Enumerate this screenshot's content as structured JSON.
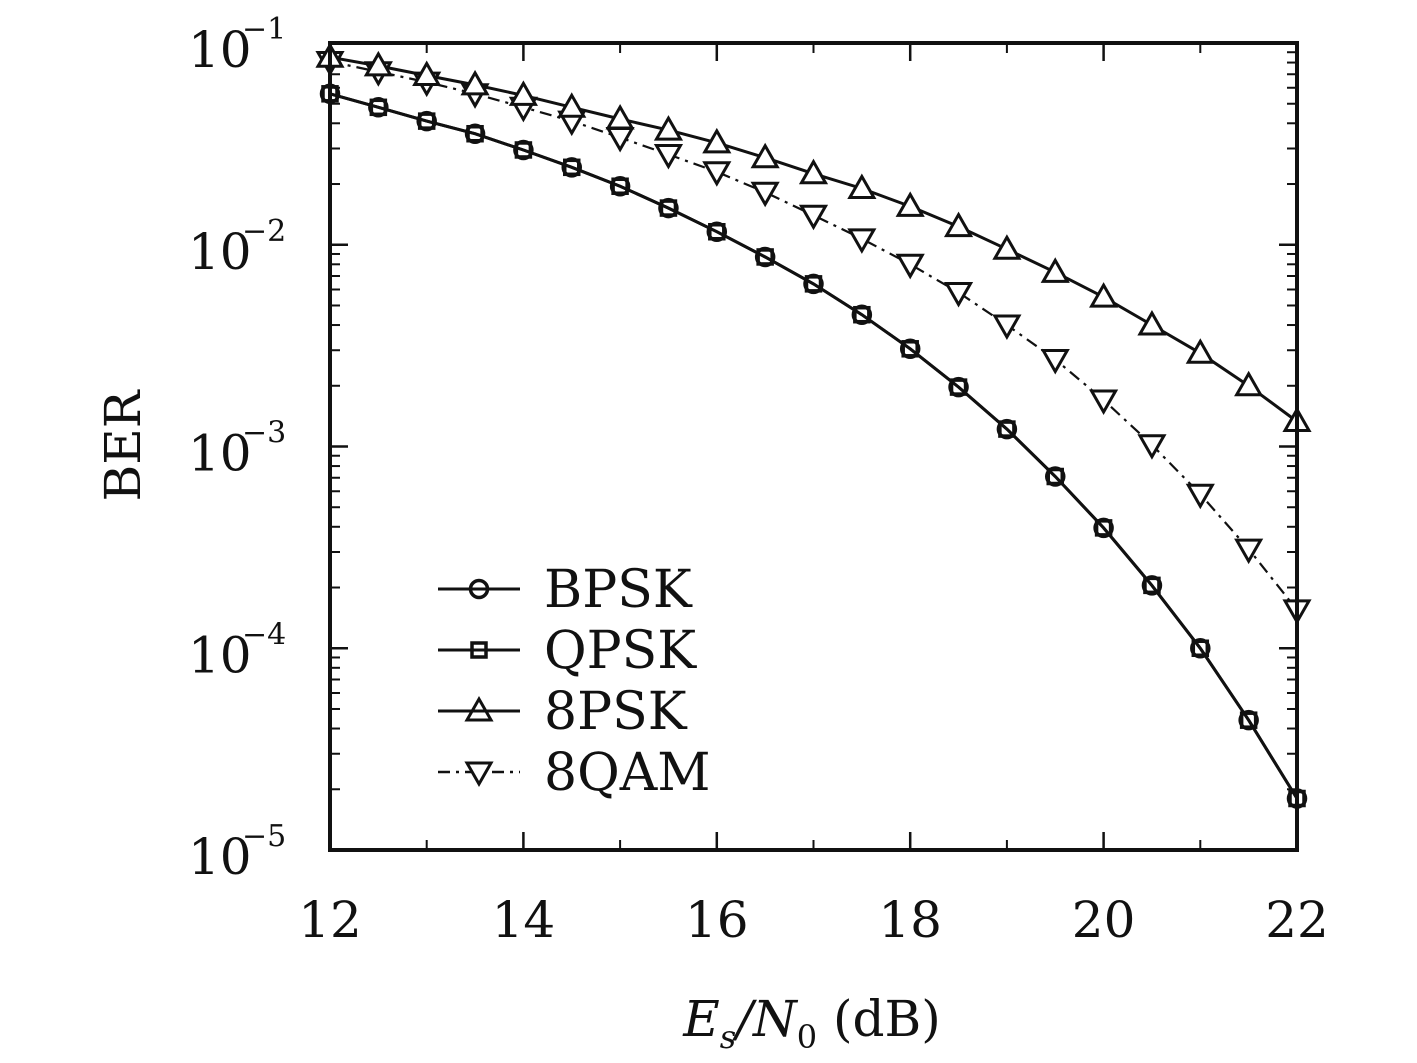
{
  "chart_data": {
    "type": "line",
    "xlabel": {
      "main": "E",
      "sub1": "s",
      "slash": "/N",
      "sub2": "0",
      "unit": " (dB)"
    },
    "ylabel": "BER",
    "xlim": [
      12,
      22
    ],
    "ylim": [
      1e-05,
      0.1
    ],
    "yscale": "log",
    "grid": false,
    "legend_position": "bottom-left",
    "x_ticks": [
      12,
      14,
      16,
      18,
      20,
      22
    ],
    "y_ticks": [
      {
        "value": 0.1,
        "base": "10",
        "exp": "−1"
      },
      {
        "value": 0.01,
        "base": "10",
        "exp": "−2"
      },
      {
        "value": 0.001,
        "base": "10",
        "exp": "−3"
      },
      {
        "value": 0.0001,
        "base": "10",
        "exp": "−4"
      },
      {
        "value": 1e-05,
        "base": "10",
        "exp": "−5"
      }
    ],
    "x": [
      12,
      12.5,
      13,
      13.5,
      14,
      14.5,
      15,
      15.5,
      16,
      16.5,
      17,
      17.5,
      18,
      18.5,
      19,
      19.5,
      20,
      20.5,
      21,
      21.5,
      22
    ],
    "series": [
      {
        "name": "BPSK",
        "marker": "circle",
        "dash": "solid",
        "values": [
          0.056,
          0.048,
          0.041,
          0.0355,
          0.0295,
          0.0242,
          0.0195,
          0.0152,
          0.0116,
          0.0087,
          0.0064,
          0.0045,
          0.00305,
          0.00197,
          0.00122,
          0.00071,
          0.000395,
          0.000205,
          0.0001,
          4.4e-05,
          1.8e-05
        ]
      },
      {
        "name": "QPSK",
        "marker": "square",
        "dash": "solid",
        "values": [
          0.056,
          0.048,
          0.041,
          0.0355,
          0.0295,
          0.0242,
          0.0195,
          0.0152,
          0.0116,
          0.0087,
          0.0064,
          0.0045,
          0.00305,
          0.00197,
          0.00122,
          0.00071,
          0.000395,
          0.000205,
          0.0001,
          4.4e-05,
          1.8e-05
        ]
      },
      {
        "name": "8PSK",
        "marker": "triangle-up",
        "dash": "solid",
        "values": [
          0.085,
          0.077,
          0.069,
          0.062,
          0.055,
          0.048,
          0.042,
          0.037,
          0.032,
          0.027,
          0.0225,
          0.019,
          0.0155,
          0.0123,
          0.0095,
          0.0073,
          0.0055,
          0.004,
          0.0029,
          0.002,
          0.00133
        ]
      },
      {
        "name": "8QAM",
        "marker": "triangle-down",
        "dash": "dashdot",
        "values": [
          0.081,
          0.072,
          0.064,
          0.056,
          0.048,
          0.041,
          0.034,
          0.028,
          0.023,
          0.0182,
          0.014,
          0.0107,
          0.008,
          0.0058,
          0.004,
          0.0027,
          0.0017,
          0.00102,
          0.00058,
          0.00031,
          0.000155
        ]
      }
    ]
  }
}
